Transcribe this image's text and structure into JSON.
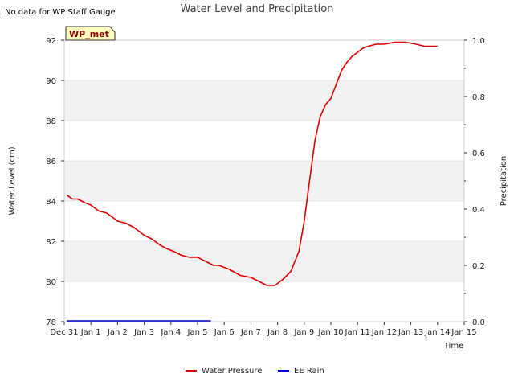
{
  "chart_data": {
    "type": "line",
    "title": "Water Level and Precipitation",
    "note": "No data for WP Staff Gauge",
    "station_label": "WP_met",
    "xlabel": "Time",
    "ylabel": "Water Level (cm)",
    "y2label": "Precipitation",
    "xlim": [
      0,
      15
    ],
    "ylim": [
      78,
      92
    ],
    "y2lim": [
      0,
      1.0
    ],
    "x_ticks": [
      0,
      1,
      2,
      3,
      4,
      5,
      6,
      7,
      8,
      9,
      10,
      11,
      12,
      13,
      14,
      15
    ],
    "x_tick_labels": [
      "Dec 31",
      "Jan 1",
      "Jan 2",
      "Jan 3",
      "Jan 4",
      "Jan 5",
      "Jan 6",
      "Jan 7",
      "Jan 8",
      "Jan 9",
      "Jan 10",
      "Jan 11",
      "Jan 12",
      "Jan 13",
      "Jan 14",
      "Jan 15"
    ],
    "y_ticks": [
      78,
      80,
      82,
      84,
      86,
      88,
      90,
      92
    ],
    "y_tick_labels": [
      "78",
      "80",
      "82",
      "84",
      "86",
      "88",
      "90",
      "92"
    ],
    "y2_ticks": [
      0.0,
      0.2,
      0.4,
      0.6,
      0.8,
      1.0
    ],
    "y2_tick_labels": [
      "0.0",
      "0.2",
      "0.4",
      "0.6",
      "0.8",
      "1.0"
    ],
    "grid": "horizontal bands",
    "legend_position": "bottom-center",
    "colors": {
      "water": "#dd0000",
      "rain": "#0000cc",
      "band": "#f2f2f2"
    },
    "series": [
      {
        "name": "Water Pressure",
        "axis": "left",
        "x": [
          0.1,
          0.3,
          0.5,
          0.8,
          1.0,
          1.3,
          1.6,
          1.8,
          2.0,
          2.3,
          2.6,
          2.9,
          3.0,
          3.3,
          3.6,
          3.9,
          4.1,
          4.4,
          4.7,
          5.0,
          5.3,
          5.6,
          5.8,
          6.2,
          6.6,
          7.0,
          7.3,
          7.6,
          7.9,
          8.2,
          8.5,
          8.8,
          9.0,
          9.2,
          9.4,
          9.6,
          9.8,
          10.0,
          10.2,
          10.4,
          10.6,
          10.8,
          11.0,
          11.2,
          11.4,
          11.7,
          12.0,
          12.4,
          12.8,
          13.2,
          13.5,
          13.7,
          14.0
        ],
        "y": [
          84.3,
          84.1,
          84.1,
          83.9,
          83.8,
          83.5,
          83.4,
          83.2,
          83.0,
          82.9,
          82.7,
          82.4,
          82.3,
          82.1,
          81.8,
          81.6,
          81.5,
          81.3,
          81.2,
          81.2,
          81.0,
          80.8,
          80.8,
          80.6,
          80.3,
          80.2,
          80.0,
          79.8,
          79.8,
          80.1,
          80.5,
          81.5,
          83.0,
          85.0,
          87.0,
          88.2,
          88.8,
          89.1,
          89.8,
          90.5,
          90.9,
          91.2,
          91.4,
          91.6,
          91.7,
          91.8,
          91.8,
          91.9,
          91.9,
          91.8,
          91.7,
          91.7,
          91.7
        ]
      },
      {
        "name": "EE Rain",
        "axis": "right",
        "x": [
          0.1,
          5.5
        ],
        "y": [
          0.0,
          0.0
        ]
      }
    ]
  }
}
